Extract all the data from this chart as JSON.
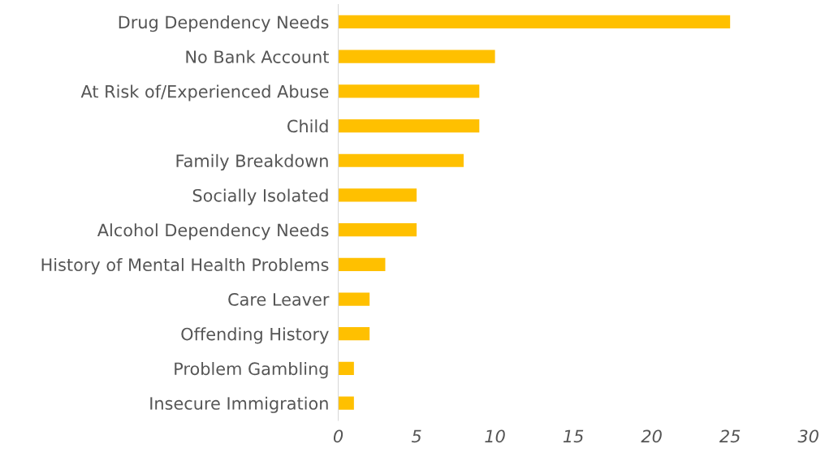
{
  "chart_data": {
    "type": "bar",
    "orientation": "horizontal",
    "categories": [
      "Drug Dependency Needs",
      "No Bank Account",
      "At Risk of/Experienced Abuse",
      "Child",
      "Family Breakdown",
      "Socially Isolated",
      "Alcohol Dependency Needs",
      "History of Mental Health Problems",
      "Care Leaver",
      "Offending History",
      "Problem Gambling",
      "Insecure Immigration"
    ],
    "values": [
      25,
      10,
      9,
      9,
      8,
      5,
      5,
      3,
      2,
      2,
      1,
      1
    ],
    "color": "#ffc000",
    "xlim": [
      0,
      30
    ],
    "xticks": [
      0,
      5,
      10,
      15,
      20,
      25,
      30
    ],
    "grid": false
  }
}
